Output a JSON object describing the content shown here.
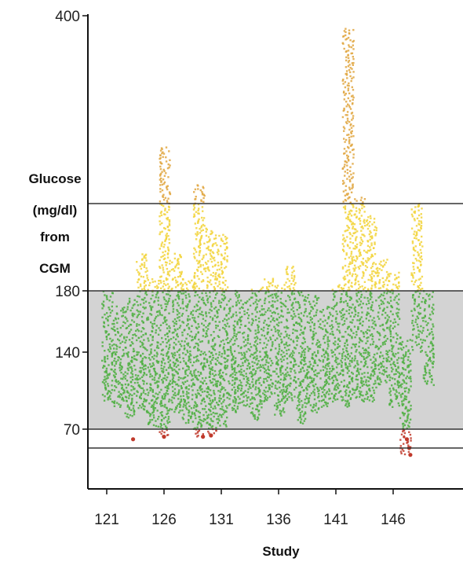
{
  "chart_data": {
    "type": "scatter",
    "xlabel": "Study",
    "ylabel_lines": [
      "Glucose",
      "(mg/dl)",
      "from",
      "CGM"
    ],
    "x_ticks": [
      121,
      126,
      131,
      136,
      141,
      146
    ],
    "y_ticks": [
      70,
      140,
      180,
      400
    ],
    "xlim": [
      120.2,
      150.5
    ],
    "reference_lines": [
      250,
      180,
      70,
      55
    ],
    "target_range": [
      70,
      180
    ],
    "colors": {
      "in_range": "#4caf3f",
      "above_180": "#f2d43a",
      "above_250": "#e0a640",
      "below_70": "#c0392b",
      "band": "#d3d3d3"
    },
    "studies": [
      {
        "study": 121,
        "min": 95,
        "max": 180
      },
      {
        "study": 122,
        "min": 90,
        "max": 170
      },
      {
        "study": 123,
        "min": 80,
        "max": 175
      },
      {
        "study": 124,
        "min": 85,
        "max": 210
      },
      {
        "study": 125,
        "min": 72,
        "max": 190
      },
      {
        "study": 126,
        "min": 64,
        "max": 295
      },
      {
        "study": 127,
        "min": 85,
        "max": 210
      },
      {
        "study": 128,
        "min": 75,
        "max": 190
      },
      {
        "study": 129,
        "min": 64,
        "max": 265
      },
      {
        "study": 130,
        "min": 66,
        "max": 230
      },
      {
        "study": 131,
        "min": 72,
        "max": 225
      },
      {
        "study": 132,
        "min": 85,
        "max": 180
      },
      {
        "study": 133,
        "min": 90,
        "max": 175
      },
      {
        "study": 134,
        "min": 78,
        "max": 182
      },
      {
        "study": 135,
        "min": 95,
        "max": 190
      },
      {
        "study": 136,
        "min": 82,
        "max": 185
      },
      {
        "study": 137,
        "min": 95,
        "max": 200
      },
      {
        "study": 138,
        "min": 75,
        "max": 180
      },
      {
        "study": 139,
        "min": 85,
        "max": 178
      },
      {
        "study": 140,
        "min": 90,
        "max": 170
      },
      {
        "study": 141,
        "min": 95,
        "max": 185
      },
      {
        "study": 142,
        "min": 90,
        "max": 390
      },
      {
        "study": 143,
        "min": 95,
        "max": 255
      },
      {
        "study": 144,
        "min": 95,
        "max": 240
      },
      {
        "study": 145,
        "min": 110,
        "max": 205
      },
      {
        "study": 146,
        "min": 90,
        "max": 195
      },
      {
        "study": 147,
        "min": 50,
        "max": 150
      },
      {
        "study": 148,
        "min": 140,
        "max": 250
      },
      {
        "study": 149,
        "min": 110,
        "max": 180
      }
    ],
    "low_points": [
      {
        "study": 123.3,
        "value": 62
      },
      {
        "study": 126.0,
        "value": 64
      },
      {
        "study": 129.4,
        "value": 64
      },
      {
        "study": 130.1,
        "value": 65
      },
      {
        "study": 147.2,
        "value": 62
      },
      {
        "study": 147.4,
        "value": 55
      },
      {
        "study": 147.5,
        "value": 50
      }
    ]
  }
}
